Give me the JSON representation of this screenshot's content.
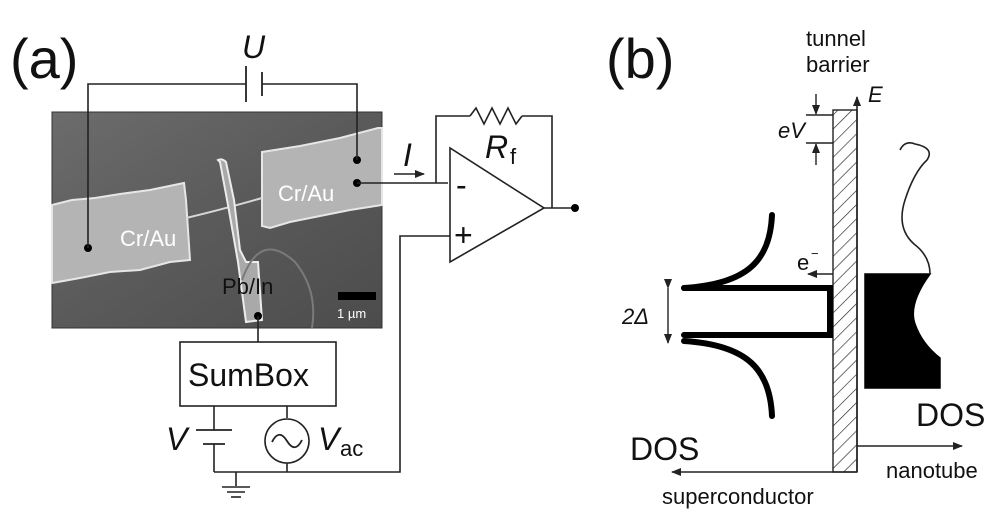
{
  "panel_a": {
    "label": "(a)",
    "voltage_U": "U",
    "electrode_left": "Cr/Au",
    "electrode_right": "Cr/Au",
    "contact": "Pb/In",
    "scale_bar": "1 µm",
    "current_I": "I",
    "resistor_R": "R",
    "resistor_sub": "f",
    "opamp_minus": "-",
    "opamp_plus": "+",
    "sumbox": "SumBox",
    "dc_source": "V",
    "ac_source": "V",
    "ac_sub": "ac"
  },
  "panel_b": {
    "label": "(b)",
    "barrier_line1": "tunnel",
    "barrier_line2": "barrier",
    "energy_axis": "E",
    "eV": "eV",
    "electron": "e",
    "electron_sup": "−",
    "gap": "2Δ",
    "dos_left": "DOS",
    "dos_right": "DOS",
    "superconductor": "superconductor",
    "nanotube": "nanotube"
  }
}
